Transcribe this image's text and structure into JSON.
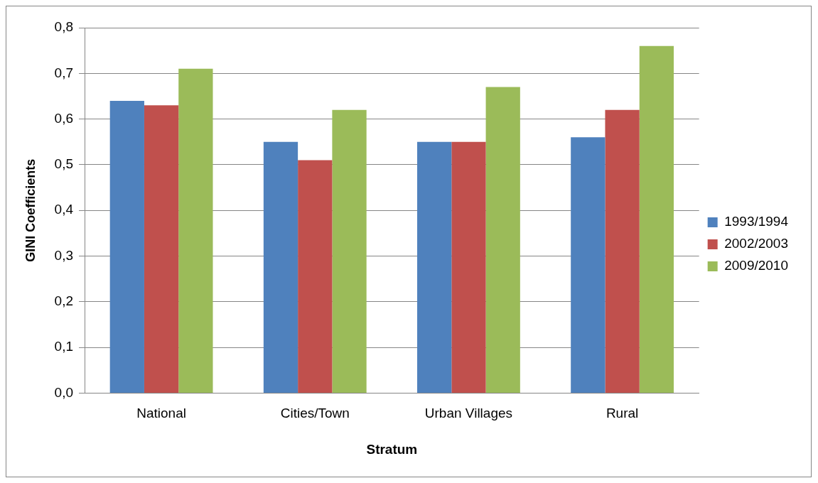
{
  "chart_data": {
    "type": "bar",
    "xlabel": "Stratum",
    "ylabel": "GINI Coefficients",
    "categories": [
      "National",
      "Cities/Town",
      "Urban Villages",
      "Rural"
    ],
    "series": [
      {
        "name": "1993/1994",
        "color": "#4f81bd",
        "values": [
          0.64,
          0.55,
          0.55,
          0.56
        ]
      },
      {
        "name": "2002/2003",
        "color": "#c0504d",
        "values": [
          0.63,
          0.51,
          0.55,
          0.62
        ]
      },
      {
        "name": "2009/2010",
        "color": "#9bbb59",
        "values": [
          0.71,
          0.62,
          0.67,
          0.76
        ]
      }
    ],
    "ylim": [
      0,
      0.8
    ],
    "yticks": [
      {
        "value": 0,
        "label": "0,0"
      },
      {
        "value": 0.1,
        "label": "0,1"
      },
      {
        "value": 0.2,
        "label": "0,2"
      },
      {
        "value": 0.3,
        "label": "0,3"
      },
      {
        "value": 0.4,
        "label": "0,4"
      },
      {
        "value": 0.5,
        "label": "0,5"
      },
      {
        "value": 0.6,
        "label": "0,6"
      },
      {
        "value": 0.7,
        "label": "0,7"
      },
      {
        "value": 0.8,
        "label": "0,8"
      }
    ],
    "grid": "y",
    "legend": "right"
  }
}
